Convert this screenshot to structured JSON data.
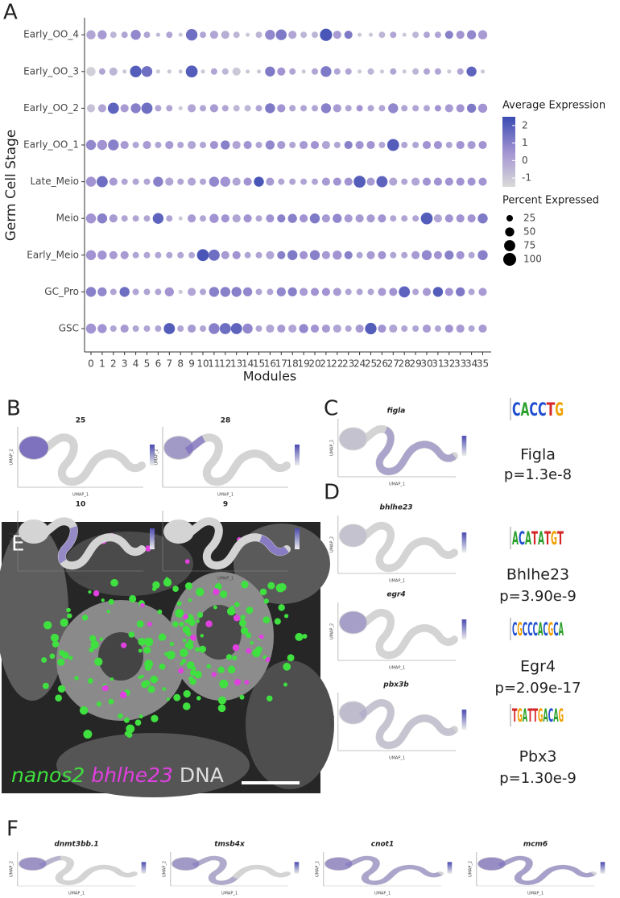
{
  "panel_labels": [
    "A",
    "B",
    "C",
    "D",
    "E",
    "F"
  ],
  "chart_data": {
    "type": "dot",
    "xlabel": "Modules",
    "ylabel": "Germ Cell Stage",
    "categories": [
      "0",
      "1",
      "2",
      "3",
      "4",
      "5",
      "6",
      "7",
      "8",
      "9",
      "10",
      "11",
      "12",
      "13",
      "14",
      "15",
      "16",
      "17",
      "18",
      "19",
      "20",
      "21",
      "22",
      "23",
      "24",
      "25",
      "26",
      "27",
      "28",
      "29",
      "30",
      "31",
      "32",
      "33",
      "34",
      "35"
    ],
    "rows": [
      "GSC",
      "GC_Pro",
      "Early_Meio",
      "Meio",
      "Late_Meio",
      "Early_OO_1",
      "Early_OO_2",
      "Early_OO_3",
      "Early_OO_4"
    ],
    "percent": [
      [
        60,
        50,
        25,
        40,
        25,
        25,
        25,
        75,
        25,
        40,
        25,
        70,
        75,
        75,
        60,
        25,
        40,
        40,
        40,
        50,
        40,
        40,
        40,
        25,
        40,
        80,
        40,
        40,
        25,
        25,
        40,
        25,
        40,
        40,
        25,
        40
      ],
      [
        60,
        50,
        25,
        60,
        25,
        25,
        25,
        50,
        10,
        40,
        25,
        60,
        60,
        60,
        50,
        25,
        25,
        50,
        50,
        40,
        40,
        40,
        40,
        25,
        25,
        25,
        40,
        40,
        75,
        25,
        40,
        60,
        40,
        50,
        25,
        40
      ],
      [
        60,
        50,
        40,
        40,
        25,
        25,
        25,
        25,
        25,
        25,
        85,
        75,
        40,
        40,
        25,
        25,
        40,
        40,
        60,
        40,
        60,
        40,
        50,
        40,
        25,
        40,
        40,
        25,
        25,
        40,
        60,
        40,
        50,
        40,
        25,
        60
      ],
      [
        60,
        60,
        40,
        25,
        25,
        25,
        70,
        25,
        10,
        40,
        25,
        50,
        40,
        40,
        40,
        25,
        40,
        40,
        50,
        40,
        60,
        40,
        50,
        40,
        40,
        40,
        40,
        25,
        25,
        25,
        85,
        40,
        40,
        40,
        40,
        60
      ],
      [
        60,
        75,
        40,
        25,
        25,
        25,
        60,
        40,
        25,
        40,
        25,
        60,
        60,
        40,
        40,
        60,
        40,
        25,
        25,
        25,
        25,
        40,
        40,
        40,
        85,
        40,
        75,
        40,
        25,
        40,
        40,
        40,
        40,
        40,
        40,
        40
      ],
      [
        60,
        60,
        70,
        40,
        25,
        40,
        25,
        40,
        25,
        40,
        25,
        40,
        50,
        40,
        40,
        25,
        50,
        40,
        25,
        40,
        40,
        40,
        25,
        40,
        40,
        40,
        25,
        85,
        25,
        25,
        40,
        40,
        25,
        40,
        40,
        40
      ],
      [
        40,
        40,
        75,
        40,
        60,
        75,
        25,
        25,
        10,
        40,
        25,
        40,
        25,
        25,
        25,
        25,
        60,
        40,
        25,
        25,
        25,
        60,
        40,
        25,
        25,
        25,
        25,
        60,
        25,
        25,
        25,
        25,
        40,
        40,
        50,
        50
      ],
      [
        50,
        25,
        40,
        10,
        80,
        70,
        10,
        10,
        10,
        85,
        10,
        25,
        25,
        40,
        10,
        10,
        60,
        40,
        25,
        10,
        25,
        70,
        25,
        25,
        10,
        25,
        10,
        25,
        10,
        25,
        25,
        25,
        10,
        25,
        60,
        10
      ],
      [
        50,
        50,
        25,
        25,
        60,
        25,
        10,
        25,
        10,
        80,
        25,
        40,
        40,
        25,
        10,
        25,
        60,
        70,
        40,
        25,
        25,
        90,
        40,
        40,
        10,
        10,
        25,
        25,
        10,
        25,
        25,
        25,
        40,
        40,
        50,
        50
      ]
    ],
    "average": [
      [
        0.5,
        0.5,
        0,
        0.3,
        0,
        0,
        0,
        2,
        0,
        0.3,
        0,
        1,
        1.5,
        1.8,
        0.8,
        0,
        0,
        0.3,
        0,
        0.8,
        0.5,
        0.3,
        0,
        0,
        0.3,
        2,
        0.5,
        0,
        0,
        0,
        0.3,
        0,
        0.5,
        0.3,
        0,
        0.3
      ],
      [
        1,
        0.8,
        0,
        1.5,
        0,
        0,
        0,
        0.5,
        -1,
        0,
        0,
        1,
        1,
        1,
        0.8,
        0,
        0,
        0.8,
        1,
        0.3,
        0.5,
        0.5,
        0.3,
        0,
        0,
        0,
        0.3,
        0.5,
        1.8,
        0,
        0.3,
        2,
        0.5,
        1.2,
        0,
        0.3
      ],
      [
        0.5,
        0.5,
        0.3,
        0.3,
        0,
        0,
        0,
        0,
        0,
        0,
        2.2,
        1.5,
        0.3,
        0.5,
        0,
        0,
        0,
        1,
        1.2,
        0.5,
        1,
        0.3,
        0.5,
        1,
        0,
        0.3,
        0.5,
        0,
        0,
        0.3,
        0.8,
        0.5,
        1,
        0.5,
        0,
        1
      ],
      [
        0.5,
        1,
        0.3,
        0,
        0,
        0,
        1.8,
        0,
        -1,
        0.3,
        0,
        0.5,
        0.5,
        0,
        0.5,
        0,
        0.5,
        1,
        1,
        0.5,
        1.2,
        0.3,
        0.8,
        0.3,
        0.3,
        0.3,
        0.5,
        0,
        0,
        0,
        2,
        0,
        0.5,
        0.5,
        0.5,
        1.2
      ],
      [
        0.5,
        1.5,
        0.3,
        0,
        0,
        0,
        1,
        0,
        0,
        0,
        0,
        0.8,
        0.5,
        0,
        0.5,
        2.2,
        0.3,
        0,
        0,
        0,
        0,
        0.3,
        0.5,
        0.5,
        2,
        0.3,
        1.8,
        0,
        0,
        0,
        0.5,
        0.5,
        0.5,
        0.5,
        0.5,
        0.5
      ],
      [
        0.8,
        0.5,
        1,
        0.3,
        0,
        0.3,
        0,
        0.3,
        0,
        0,
        0,
        0.5,
        1,
        0,
        0.5,
        0,
        0.8,
        0.3,
        0,
        0.3,
        0.5,
        0,
        0,
        1,
        0.5,
        0.5,
        0,
        2,
        0,
        0,
        0.5,
        0.5,
        0,
        0.5,
        0.3,
        0.5
      ],
      [
        -0.8,
        0,
        1.8,
        0.3,
        1,
        1.5,
        0,
        0,
        -1,
        0,
        0,
        0.3,
        0,
        -0.5,
        -0.5,
        0,
        1.2,
        0.5,
        0,
        0,
        0,
        1,
        0.3,
        0,
        0.5,
        0,
        0,
        0.8,
        0,
        0,
        0,
        0.5,
        0.3,
        0.5,
        1.2,
        0.5
      ],
      [
        -1.2,
        0,
        -0.5,
        -1,
        2,
        1.5,
        -1,
        -1,
        -1,
        2,
        -1,
        0,
        -0.5,
        -1,
        -1,
        -1,
        1.2,
        0.5,
        0,
        -1,
        0,
        1.2,
        0,
        0,
        -1,
        -0.5,
        -1,
        0,
        -1,
        -0.5,
        0,
        0,
        -1,
        0,
        1.8,
        -1
      ],
      [
        0,
        0.3,
        -0.5,
        0,
        0.8,
        0,
        -0.5,
        0,
        -1,
        1.5,
        0,
        0,
        -0.3,
        -0.5,
        -1,
        -0.5,
        0.8,
        1.2,
        0,
        -0.5,
        -0.5,
        2.2,
        0.3,
        1.2,
        -1,
        -1,
        -0.5,
        0,
        -1,
        -0.5,
        0,
        0,
        1,
        0.5,
        0.8,
        0.3
      ]
    ],
    "color_title": "Average Expression",
    "color_lim": [
      -1.5,
      2.5
    ],
    "color_ticks": [
      -1,
      0,
      1,
      2
    ],
    "colors": [
      "#d9d9d9",
      "#a293d2",
      "#3a4bb2"
    ],
    "size_title": "Percent Expressed",
    "size_lim": [
      0,
      100
    ],
    "size_ticks": [
      25,
      50,
      75,
      100
    ]
  },
  "umap": {
    "x_label": "UMAP_1",
    "y_label": "UMAP_2"
  },
  "b_titles": [
    "25",
    "28",
    "10",
    "9"
  ],
  "motifs": [
    {
      "gene": "figla",
      "motif": [
        "C",
        "A",
        "C",
        "C",
        "T",
        "G"
      ],
      "tf": "Figla",
      "p": "p=1.3e-8"
    },
    {
      "gene": "bhlhe23",
      "motif": [
        "A",
        "C",
        "A",
        "T",
        "A",
        "T",
        "G",
        "T"
      ],
      "tf": "Bhlhe23",
      "p": "p=3.90e-9"
    },
    {
      "gene": "egr4",
      "motif": [
        "C",
        "G",
        "C",
        "C",
        "C",
        "A",
        "C",
        "G",
        "C",
        "A"
      ],
      "tf": "Egr4",
      "p": "p=2.09e-17"
    },
    {
      "gene": "pbx3b",
      "motif": [
        "T",
        "G",
        "A",
        "T",
        "T",
        "G",
        "A",
        "C",
        "A",
        "G"
      ],
      "tf": "Pbx3",
      "p": "p=1.30e-9"
    }
  ],
  "e_labels": [
    "nanos2",
    "bhlhe23",
    "DNA"
  ],
  "f_titles": [
    "dnmt3bb.1",
    "tmsb4x",
    "cnot1",
    "mcm6"
  ]
}
